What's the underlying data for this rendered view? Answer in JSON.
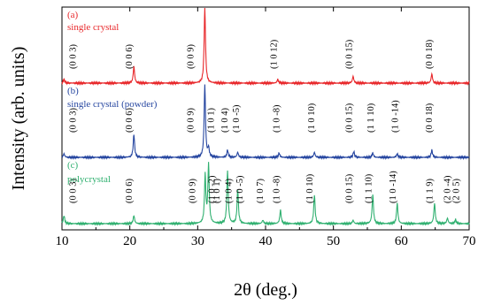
{
  "chart_data": {
    "type": "line",
    "title": "",
    "xlabel": "2θ (deg.)",
    "ylabel": "Intensity (arb. units)",
    "xlim": [
      10,
      70
    ],
    "xticks": [
      10,
      20,
      30,
      40,
      50,
      60,
      70
    ],
    "grid": false,
    "legend": "none",
    "baseline_noise_note": "",
    "series": [
      {
        "name": "single crystal",
        "tag": "(a)",
        "color": "#e8282b",
        "peaks": [
          {
            "x": 10.3,
            "h": 0.05
          },
          {
            "x": 20.6,
            "h": 0.22
          },
          {
            "x": 31.05,
            "h": 1.0
          },
          {
            "x": 41.8,
            "h": 0.05
          },
          {
            "x": 52.9,
            "h": 0.09
          },
          {
            "x": 64.5,
            "h": 0.12
          }
        ],
        "labels": [
          {
            "x": 12.0,
            "text": "(0 0 3)"
          },
          {
            "x": 20.3,
            "text": "(0 0 6)"
          },
          {
            "x": 29.4,
            "text": "(0 0 9)"
          },
          {
            "x": 41.6,
            "text": "(1 0 12)"
          },
          {
            "x": 52.7,
            "text": "(0 0 15)"
          },
          {
            "x": 64.5,
            "text": "(0 0 18)"
          }
        ]
      },
      {
        "name": "single crystal (powder)",
        "tag": "(b)",
        "color": "#2646a0",
        "peaks": [
          {
            "x": 10.3,
            "h": 0.05
          },
          {
            "x": 20.6,
            "h": 0.32
          },
          {
            "x": 31.05,
            "h": 1.0
          },
          {
            "x": 31.6,
            "h": 0.12
          },
          {
            "x": 34.4,
            "h": 0.1
          },
          {
            "x": 35.9,
            "h": 0.07
          },
          {
            "x": 42.0,
            "h": 0.06
          },
          {
            "x": 47.2,
            "h": 0.07
          },
          {
            "x": 53.0,
            "h": 0.08
          },
          {
            "x": 55.8,
            "h": 0.06
          },
          {
            "x": 59.4,
            "h": 0.05
          },
          {
            "x": 64.5,
            "h": 0.1
          }
        ],
        "labels": [
          {
            "x": 12.0,
            "text": "(0 0 3)"
          },
          {
            "x": 20.3,
            "text": "(0 0 6)"
          },
          {
            "x": 29.4,
            "text": "(0 0 9)"
          },
          {
            "x": 32.4,
            "text": "(1 0 1)"
          },
          {
            "x": 34.4,
            "text": "(1 0 4)"
          },
          {
            "x": 36.1,
            "text": "(1 0 -5)"
          },
          {
            "x": 42.0,
            "text": "(1 0 -8)"
          },
          {
            "x": 47.2,
            "text": "(1 0 10)"
          },
          {
            "x": 52.7,
            "text": "(0 0 15)"
          },
          {
            "x": 55.9,
            "text": "(1 1 10)"
          },
          {
            "x": 59.5,
            "text": "(1 0 -14)"
          },
          {
            "x": 64.5,
            "text": "(0 0 18)"
          }
        ]
      },
      {
        "name": "polycrystal",
        "tag": "(c)",
        "color": "#30b070",
        "peaks": [
          {
            "x": 10.3,
            "h": 0.12
          },
          {
            "x": 20.6,
            "h": 0.12
          },
          {
            "x": 31.1,
            "h": 0.7
          },
          {
            "x": 31.6,
            "h": 0.86
          },
          {
            "x": 34.4,
            "h": 0.78
          },
          {
            "x": 35.9,
            "h": 0.5
          },
          {
            "x": 39.6,
            "h": 0.05
          },
          {
            "x": 42.2,
            "h": 0.2
          },
          {
            "x": 47.2,
            "h": 0.43
          },
          {
            "x": 52.9,
            "h": 0.05
          },
          {
            "x": 55.8,
            "h": 0.43
          },
          {
            "x": 59.4,
            "h": 0.3
          },
          {
            "x": 64.9,
            "h": 0.3
          },
          {
            "x": 66.8,
            "h": 0.08
          },
          {
            "x": 68.0,
            "h": 0.06
          }
        ],
        "labels": [
          {
            "x": 12.0,
            "text": "(0 0 3)"
          },
          {
            "x": 20.3,
            "text": "(0 0 6)"
          },
          {
            "x": 29.6,
            "text": "(0 0 9)"
          },
          {
            "x": 32.5,
            "text": "(1 0 -2)"
          },
          {
            "x": 33.2,
            "text": "(1 0 1)"
          },
          {
            "x": 35.0,
            "text": "(1 0 4)"
          },
          {
            "x": 36.6,
            "text": "(1 0 -5)"
          },
          {
            "x": 39.6,
            "text": "(1 0 7)"
          },
          {
            "x": 42.0,
            "text": "(1 0 -8)"
          },
          {
            "x": 46.9,
            "text": "(1 0 10)"
          },
          {
            "x": 52.7,
            "text": "(0 0 15)"
          },
          {
            "x": 55.6,
            "text": "(1 1 10)"
          },
          {
            "x": 59.2,
            "text": "(1 0 -14)"
          },
          {
            "x": 64.6,
            "text": "(1 1 9)"
          },
          {
            "x": 67.2,
            "text": "(2 0 -4)"
          },
          {
            "x": 68.5,
            "text": "(2 0 5)"
          }
        ]
      }
    ]
  }
}
